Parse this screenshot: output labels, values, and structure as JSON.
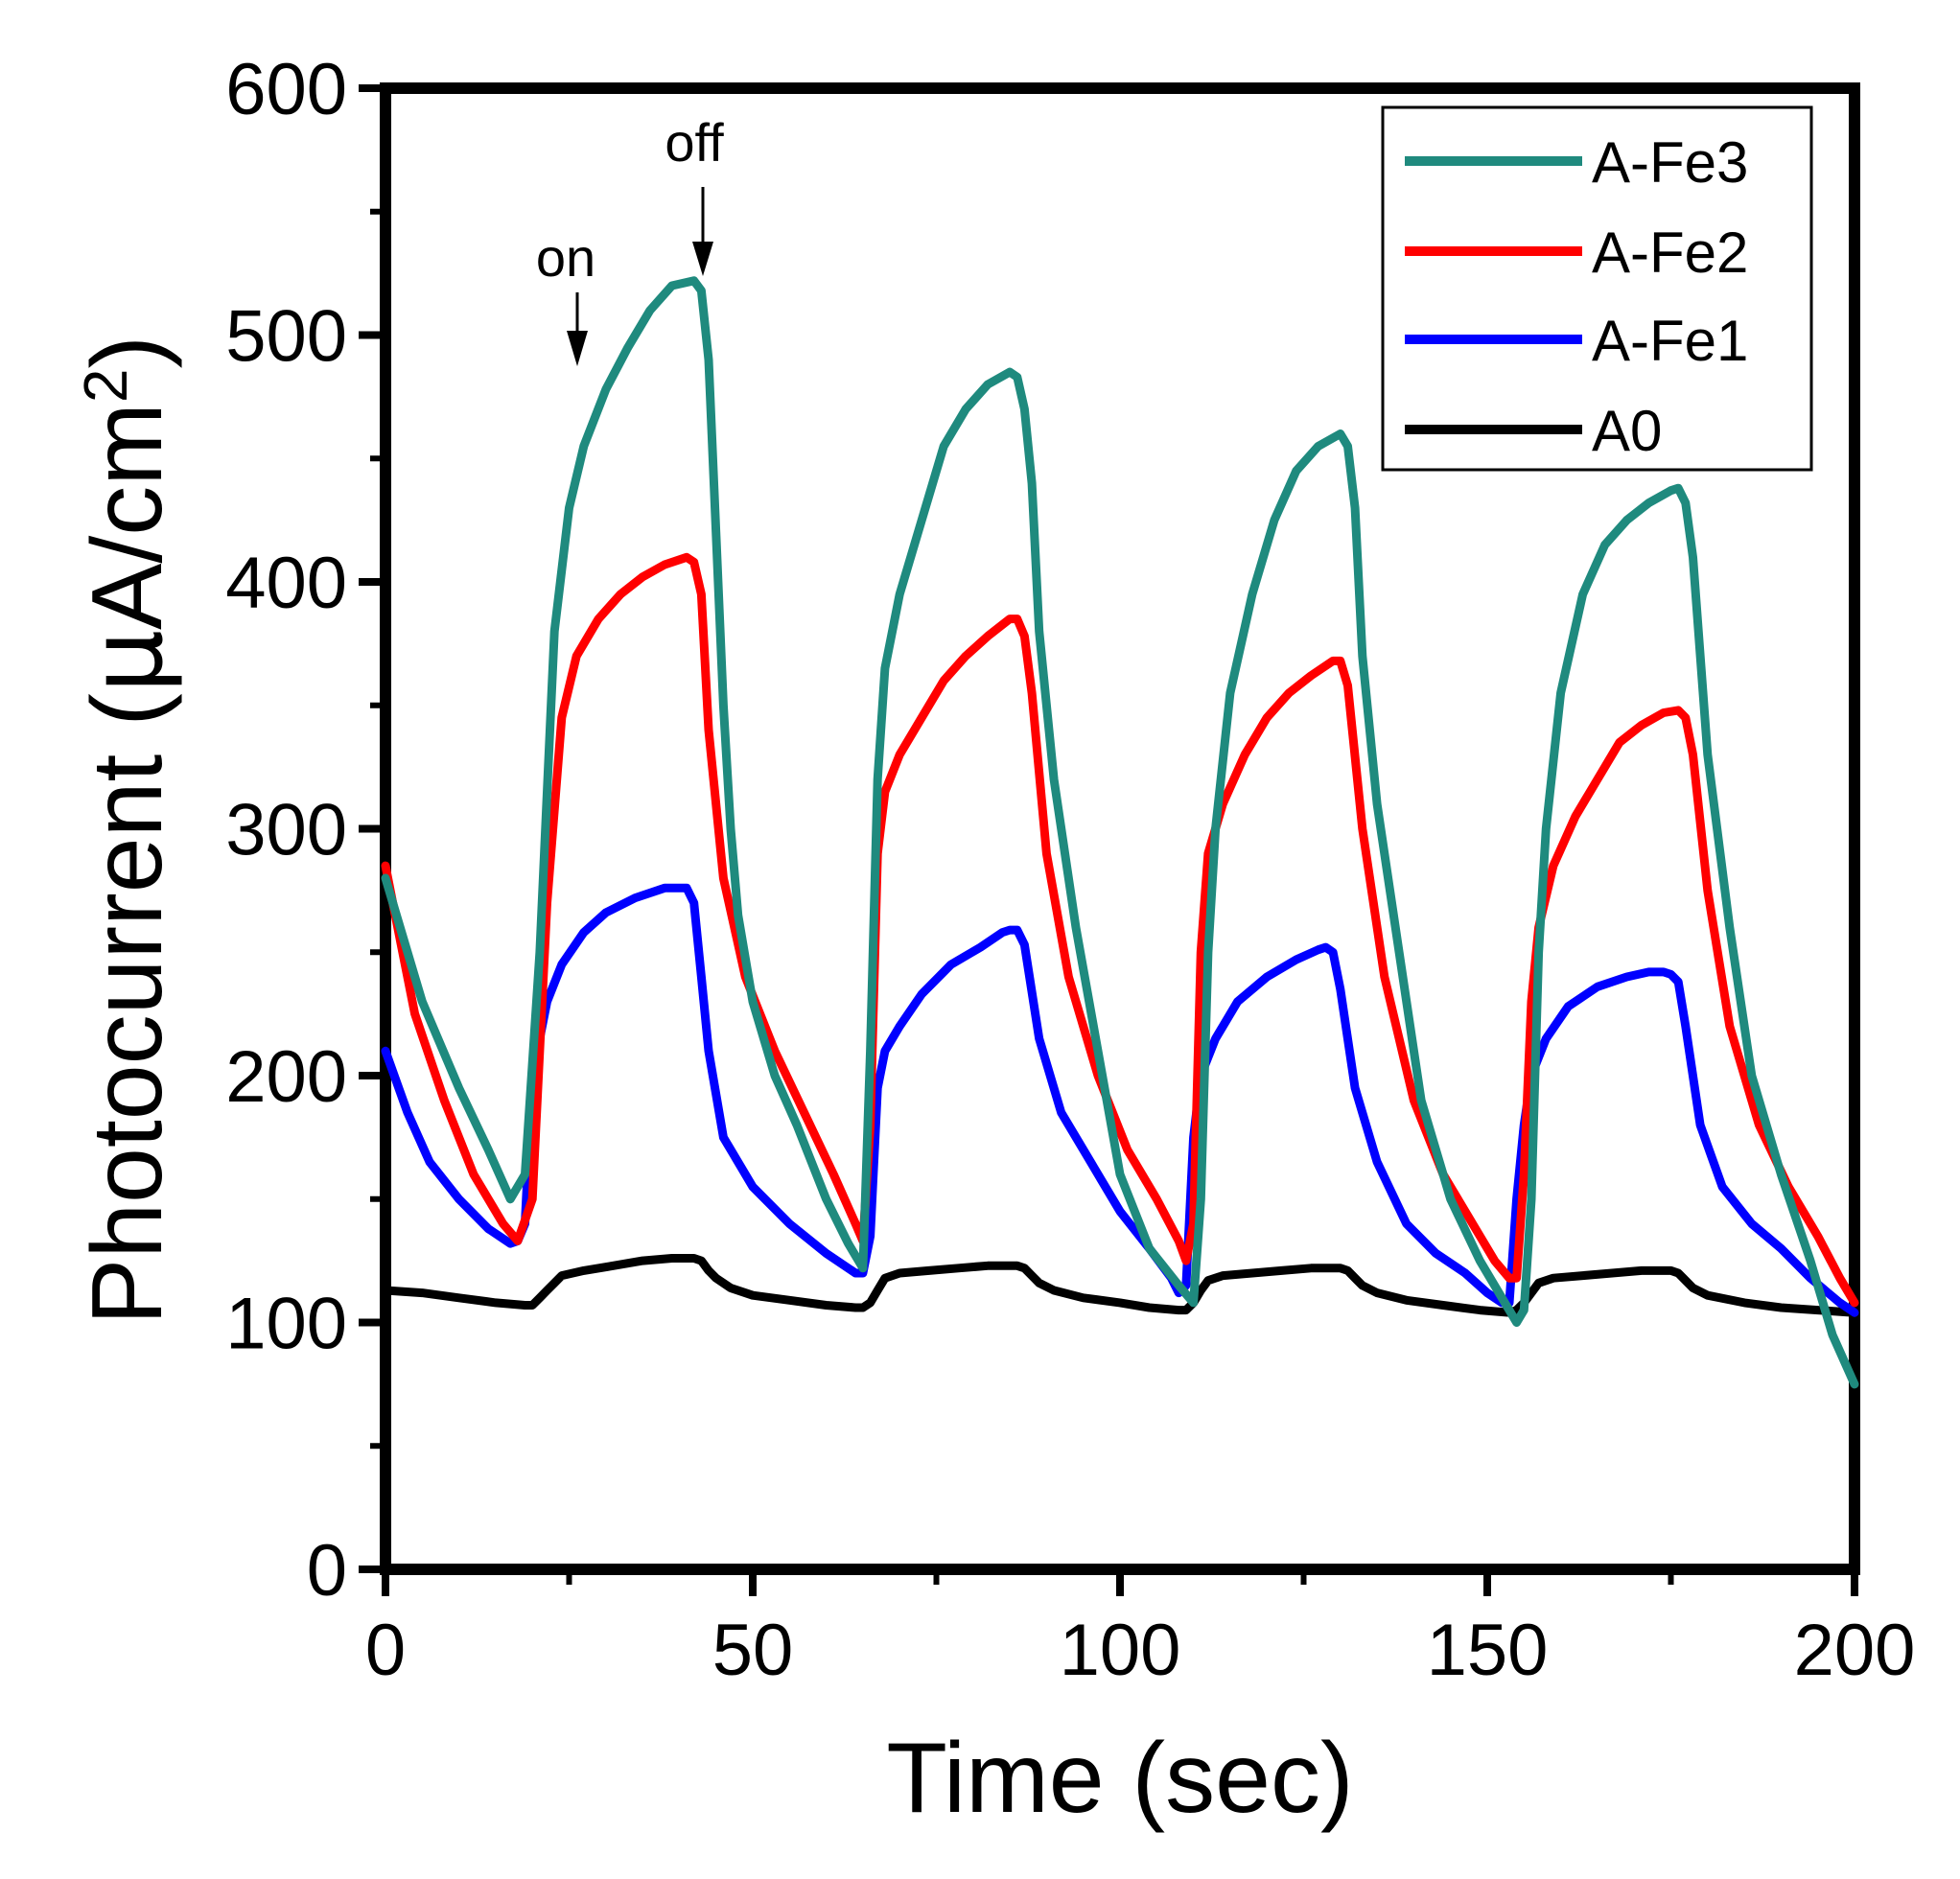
{
  "chart_data": {
    "type": "line",
    "title": "",
    "xlabel": "Time (sec)",
    "ylabel_main": "Photocurrent (",
    "ylabel_mu": "μ",
    "ylabel_unit": "A/cm",
    "ylabel_sup": "2",
    "ylabel_close": ")",
    "xlim": [
      0,
      200
    ],
    "ylim": [
      0,
      600
    ],
    "x_ticks": [
      0,
      50,
      100,
      150,
      200
    ],
    "y_ticks": [
      0,
      100,
      200,
      300,
      400,
      500,
      600
    ],
    "x_tick_labels": [
      "0",
      "50",
      "100",
      "150",
      "200"
    ],
    "y_tick_labels": [
      "0",
      "100",
      "200",
      "300",
      "400",
      "500",
      "600"
    ],
    "legend_position": "top-right",
    "annotations": [
      {
        "text": "on",
        "x": 27,
        "y": 490
      },
      {
        "text": "off",
        "x": 44,
        "y": 525
      }
    ],
    "series": [
      {
        "name": "A-Fe3",
        "color": "#1f8a7e",
        "x": [
          0,
          5,
          10,
          14,
          17,
          19,
          21,
          23,
          25,
          27,
          30,
          33,
          36,
          39,
          42,
          43,
          44,
          45,
          46,
          47,
          48,
          50,
          53,
          56,
          60,
          63,
          65,
          66,
          67,
          68,
          70,
          73,
          76,
          79,
          82,
          85,
          86,
          87,
          88,
          89,
          91,
          94,
          97,
          100,
          104,
          108,
          110,
          111,
          112,
          113,
          115,
          118,
          121,
          124,
          127,
          130,
          131,
          132,
          133,
          135,
          138,
          141,
          145,
          149,
          152,
          154,
          155,
          156,
          157,
          158,
          160,
          163,
          166,
          169,
          172,
          175,
          176,
          177,
          178,
          180,
          183,
          186,
          190,
          194,
          197,
          200
        ],
        "y": [
          280,
          230,
          195,
          170,
          150,
          160,
          250,
          380,
          430,
          455,
          478,
          495,
          510,
          520,
          522,
          518,
          490,
          420,
          350,
          300,
          265,
          230,
          200,
          180,
          150,
          132,
          122,
          210,
          320,
          365,
          395,
          425,
          455,
          470,
          480,
          485,
          483,
          470,
          440,
          380,
          320,
          260,
          210,
          160,
          130,
          115,
          108,
          150,
          250,
          300,
          355,
          395,
          425,
          445,
          455,
          460,
          455,
          430,
          370,
          310,
          250,
          190,
          150,
          125,
          110,
          100,
          105,
          150,
          250,
          300,
          355,
          395,
          415,
          425,
          432,
          437,
          438,
          432,
          410,
          330,
          260,
          200,
          160,
          125,
          95,
          75
        ]
      },
      {
        "name": "A-Fe2",
        "color": "#ff0000",
        "x": [
          0,
          4,
          8,
          12,
          16,
          18,
          20,
          22,
          24,
          26,
          29,
          32,
          35,
          38,
          41,
          42,
          43,
          44,
          46,
          49,
          53,
          57,
          61,
          64,
          65,
          66,
          67,
          68,
          70,
          73,
          76,
          79,
          82,
          85,
          86,
          87,
          88,
          90,
          93,
          97,
          101,
          105,
          108,
          109,
          110,
          111,
          112,
          114,
          117,
          120,
          123,
          126,
          129,
          130,
          131,
          133,
          136,
          140,
          144,
          148,
          151,
          153,
          154,
          155,
          156,
          157,
          159,
          162,
          165,
          168,
          171,
          174,
          176,
          177,
          178,
          180,
          183,
          187,
          191,
          195,
          198,
          200
        ],
        "y": [
          285,
          225,
          190,
          160,
          140,
          133,
          150,
          270,
          345,
          370,
          385,
          395,
          402,
          407,
          410,
          408,
          395,
          340,
          280,
          240,
          210,
          185,
          160,
          140,
          133,
          180,
          290,
          315,
          330,
          345,
          360,
          370,
          378,
          385,
          385,
          378,
          355,
          290,
          240,
          200,
          170,
          150,
          133,
          125,
          140,
          250,
          290,
          310,
          330,
          345,
          355,
          362,
          368,
          368,
          358,
          300,
          240,
          190,
          160,
          140,
          125,
          118,
          118,
          160,
          230,
          260,
          285,
          305,
          320,
          335,
          342,
          347,
          348,
          345,
          330,
          275,
          220,
          180,
          155,
          135,
          118,
          108
        ]
      },
      {
        "name": "A-Fe1",
        "color": "#0000ff",
        "x": [
          0,
          3,
          6,
          10,
          14,
          17,
          18,
          19,
          20,
          22,
          24,
          27,
          30,
          34,
          38,
          40,
          41,
          42,
          43,
          44,
          46,
          50,
          55,
          60,
          64,
          65,
          66,
          67,
          68,
          70,
          73,
          77,
          81,
          84,
          85,
          86,
          87,
          89,
          92,
          96,
          100,
          104,
          107,
          108,
          109,
          110,
          111,
          113,
          116,
          120,
          124,
          127,
          128,
          129,
          130,
          132,
          135,
          139,
          143,
          147,
          150,
          152,
          153,
          154,
          155,
          156,
          158,
          161,
          165,
          169,
          172,
          174,
          175,
          176,
          177,
          179,
          182,
          186,
          190,
          194,
          198,
          200
        ],
        "y": [
          210,
          185,
          165,
          150,
          138,
          132,
          133,
          140,
          200,
          230,
          245,
          258,
          266,
          272,
          276,
          276,
          276,
          270,
          240,
          210,
          175,
          155,
          140,
          128,
          120,
          120,
          135,
          195,
          210,
          220,
          233,
          245,
          252,
          258,
          259,
          259,
          253,
          215,
          185,
          165,
          145,
          130,
          118,
          112,
          115,
          175,
          200,
          215,
          230,
          240,
          247,
          251,
          252,
          250,
          235,
          195,
          165,
          140,
          128,
          120,
          112,
          108,
          108,
          150,
          180,
          200,
          215,
          228,
          236,
          240,
          242,
          242,
          241,
          238,
          220,
          180,
          155,
          140,
          130,
          118,
          108,
          104
        ]
      },
      {
        "name": "A0",
        "color": "#000000",
        "x": [
          0,
          5,
          10,
          15,
          19,
          20,
          21,
          22,
          23,
          24,
          27,
          31,
          35,
          39,
          42,
          43,
          44,
          45,
          47,
          50,
          55,
          60,
          64,
          65,
          66,
          67,
          68,
          70,
          74,
          78,
          82,
          86,
          87,
          88,
          89,
          91,
          95,
          100,
          104,
          108,
          109,
          110,
          111,
          112,
          114,
          118,
          122,
          126,
          130,
          131,
          132,
          133,
          135,
          139,
          144,
          149,
          153,
          154,
          155,
          156,
          157,
          159,
          163,
          167,
          171,
          175,
          176,
          177,
          178,
          180,
          185,
          190,
          195,
          200
        ],
        "y": [
          113,
          112,
          110,
          108,
          107,
          107,
          110,
          113,
          116,
          119,
          121,
          123,
          125,
          126,
          126,
          125,
          121,
          118,
          114,
          111,
          109,
          107,
          106,
          106,
          108,
          113,
          118,
          120,
          121,
          122,
          123,
          123,
          122,
          119,
          116,
          113,
          110,
          108,
          106,
          105,
          105,
          108,
          113,
          117,
          119,
          120,
          121,
          122,
          122,
          121,
          118,
          115,
          112,
          109,
          107,
          105,
          104,
          105,
          108,
          112,
          116,
          118,
          119,
          120,
          121,
          121,
          120,
          117,
          114,
          111,
          108,
          106,
          105,
          104
        ]
      }
    ]
  }
}
